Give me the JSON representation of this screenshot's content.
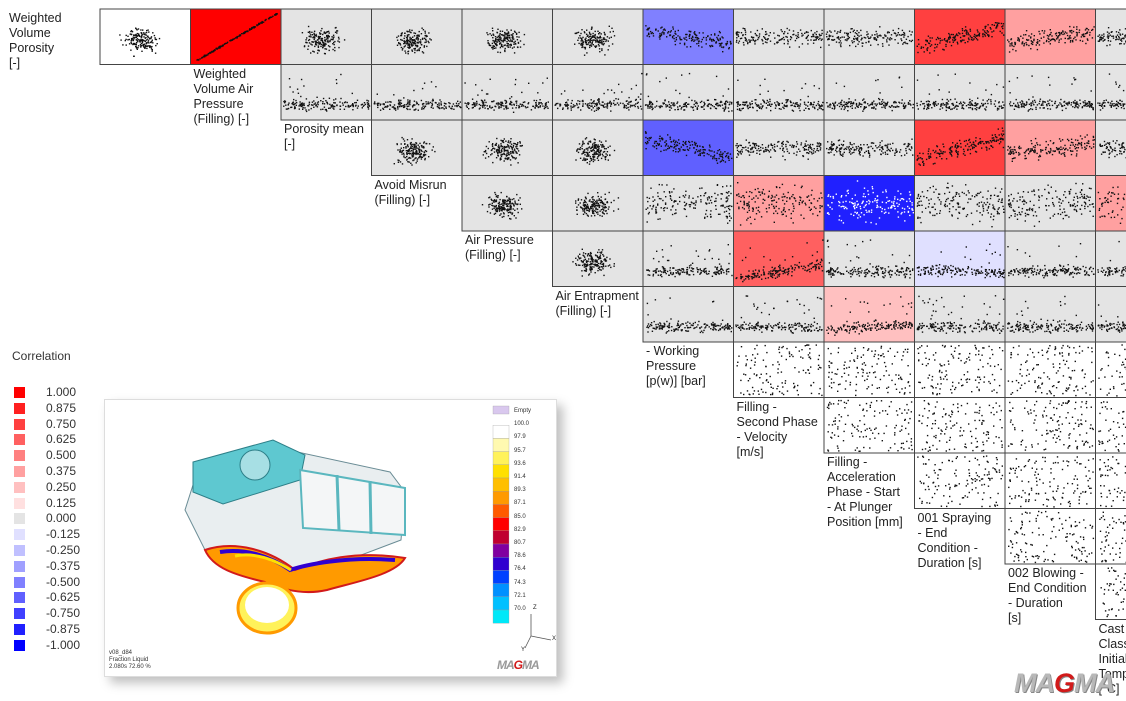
{
  "chart_data": {
    "type": "scatter-matrix",
    "title": "",
    "variables": [
      "Weighted Volume Porosity [-]",
      "Weighted Volume Air Pressure (Filling) [-]",
      "Porosity mean [-]",
      "Avoid Misrun (Filling) [-]",
      "Air Pressure (Filling) [-]",
      "Air Entrapment (Filling) [-]",
      "- Working Pressure [p(w)] [bar]",
      "Filling - Second Phase - Velocity [m/s]",
      "Filling - Acceleration Phase - Start - At Plunger Position [mm]",
      "001 Spraying - End Condition - Duration [s]",
      "002 Blowing - End Condition - Duration [s]",
      "Cast Alloy Class - Initial Temperature [°C]"
    ],
    "label_lines": [
      [
        "Weighted",
        "Volume",
        "Porosity",
        "[-]"
      ],
      [
        "Weighted",
        "Volume Air",
        "Pressure",
        "(Filling) [-]"
      ],
      [
        "Porosity mean",
        "[-]"
      ],
      [
        "Avoid Misrun",
        "(Filling) [-]"
      ],
      [
        "Air Pressure",
        "(Filling) [-]"
      ],
      [
        "Air Entrapment",
        "(Filling) [-]"
      ],
      [
        "- Working",
        "Pressure",
        "[p(w)] [bar]"
      ],
      [
        "Filling -",
        "Second Phase",
        "- Velocity",
        "[m/s]"
      ],
      [
        "Filling -",
        "Acceleration",
        "Phase - Start",
        "- At Plunger",
        "Position [mm]"
      ],
      [
        "001 Spraying",
        "- End",
        "Condition -",
        "Duration [s]"
      ],
      [
        "002 Blowing -",
        "End Condition",
        "- Duration",
        "[s]"
      ],
      [
        "Cast Alloy",
        "Class -",
        "Initial",
        "Temperature",
        "[°C]"
      ]
    ],
    "cells": [
      {
        "row": 0,
        "col": 1,
        "pattern": "linear",
        "corr": 0.95
      },
      {
        "row": 0,
        "col": 2,
        "pattern": "blob",
        "corr": 0
      },
      {
        "row": 0,
        "col": 3,
        "pattern": "blob",
        "corr": 0
      },
      {
        "row": 0,
        "col": 4,
        "pattern": "blob",
        "corr": 0
      },
      {
        "row": 0,
        "col": 5,
        "pattern": "blob",
        "corr": 0
      },
      {
        "row": 0,
        "col": 6,
        "pattern": "band",
        "corr": -0.5
      },
      {
        "row": 0,
        "col": 7,
        "pattern": "band",
        "corr": 0
      },
      {
        "row": 0,
        "col": 8,
        "pattern": "band",
        "corr": 0
      },
      {
        "row": 0,
        "col": 9,
        "pattern": "band",
        "corr": 0.75
      },
      {
        "row": 0,
        "col": 10,
        "pattern": "band",
        "corr": 0.375
      },
      {
        "row": 0,
        "col": 11,
        "pattern": "band",
        "corr": 0
      },
      {
        "row": 1,
        "col": 2,
        "pattern": "lowband",
        "corr": 0
      },
      {
        "row": 1,
        "col": 3,
        "pattern": "lowband",
        "corr": 0
      },
      {
        "row": 1,
        "col": 4,
        "pattern": "lowband",
        "corr": 0
      },
      {
        "row": 1,
        "col": 5,
        "pattern": "lowband",
        "corr": 0
      },
      {
        "row": 1,
        "col": 6,
        "pattern": "lowband",
        "corr": 0
      },
      {
        "row": 1,
        "col": 7,
        "pattern": "lowband",
        "corr": 0
      },
      {
        "row": 1,
        "col": 8,
        "pattern": "lowband",
        "corr": 0
      },
      {
        "row": 1,
        "col": 9,
        "pattern": "lowband",
        "corr": 0
      },
      {
        "row": 1,
        "col": 10,
        "pattern": "lowband",
        "corr": 0
      },
      {
        "row": 1,
        "col": 11,
        "pattern": "lowband",
        "corr": 0
      },
      {
        "row": 2,
        "col": 3,
        "pattern": "blob",
        "corr": 0
      },
      {
        "row": 2,
        "col": 4,
        "pattern": "blob",
        "corr": 0
      },
      {
        "row": 2,
        "col": 5,
        "pattern": "blob",
        "corr": 0
      },
      {
        "row": 2,
        "col": 6,
        "pattern": "band",
        "corr": -0.625
      },
      {
        "row": 2,
        "col": 7,
        "pattern": "band",
        "corr": 0
      },
      {
        "row": 2,
        "col": 8,
        "pattern": "band",
        "corr": 0
      },
      {
        "row": 2,
        "col": 9,
        "pattern": "band",
        "corr": 0.75
      },
      {
        "row": 2,
        "col": 10,
        "pattern": "band",
        "corr": 0.375
      },
      {
        "row": 2,
        "col": 11,
        "pattern": "band",
        "corr": 0
      },
      {
        "row": 3,
        "col": 4,
        "pattern": "blob",
        "corr": 0
      },
      {
        "row": 3,
        "col": 5,
        "pattern": "blob",
        "corr": 0
      },
      {
        "row": 3,
        "col": 6,
        "pattern": "spread",
        "corr": 0
      },
      {
        "row": 3,
        "col": 7,
        "pattern": "spread",
        "corr": 0.375
      },
      {
        "row": 3,
        "col": 8,
        "pattern": "spread",
        "corr": -0.875
      },
      {
        "row": 3,
        "col": 9,
        "pattern": "spread",
        "corr": 0
      },
      {
        "row": 3,
        "col": 10,
        "pattern": "spread",
        "corr": 0
      },
      {
        "row": 3,
        "col": 11,
        "pattern": "spread",
        "corr": 0.375
      },
      {
        "row": 4,
        "col": 5,
        "pattern": "blob",
        "corr": 0
      },
      {
        "row": 4,
        "col": 6,
        "pattern": "lowband",
        "corr": 0
      },
      {
        "row": 4,
        "col": 7,
        "pattern": "lowband",
        "corr": 0.625
      },
      {
        "row": 4,
        "col": 8,
        "pattern": "lowband",
        "corr": 0
      },
      {
        "row": 4,
        "col": 9,
        "pattern": "lowband",
        "corr": -0.125
      },
      {
        "row": 4,
        "col": 10,
        "pattern": "lowband",
        "corr": 0
      },
      {
        "row": 4,
        "col": 11,
        "pattern": "lowband",
        "corr": 0
      },
      {
        "row": 5,
        "col": 6,
        "pattern": "lowband",
        "corr": 0
      },
      {
        "row": 5,
        "col": 7,
        "pattern": "lowband",
        "corr": 0
      },
      {
        "row": 5,
        "col": 8,
        "pattern": "lowband",
        "corr": 0.25
      },
      {
        "row": 5,
        "col": 9,
        "pattern": "lowband",
        "corr": 0
      },
      {
        "row": 5,
        "col": 10,
        "pattern": "lowband",
        "corr": 0
      },
      {
        "row": 5,
        "col": 11,
        "pattern": "lowband",
        "corr": 0
      },
      {
        "row": 6,
        "col": 7,
        "pattern": "uniform",
        "corr": null
      },
      {
        "row": 6,
        "col": 8,
        "pattern": "uniform",
        "corr": null
      },
      {
        "row": 6,
        "col": 9,
        "pattern": "uniform",
        "corr": null
      },
      {
        "row": 6,
        "col": 10,
        "pattern": "uniform",
        "corr": null
      },
      {
        "row": 6,
        "col": 11,
        "pattern": "uniform",
        "corr": null
      },
      {
        "row": 7,
        "col": 8,
        "pattern": "uniform",
        "corr": null
      },
      {
        "row": 7,
        "col": 9,
        "pattern": "uniform",
        "corr": null
      },
      {
        "row": 7,
        "col": 10,
        "pattern": "uniform",
        "corr": null
      },
      {
        "row": 7,
        "col": 11,
        "pattern": "uniform",
        "corr": null
      },
      {
        "row": 8,
        "col": 9,
        "pattern": "uniform",
        "corr": null
      },
      {
        "row": 8,
        "col": 10,
        "pattern": "uniform",
        "corr": null
      },
      {
        "row": 8,
        "col": 11,
        "pattern": "uniform",
        "corr": null
      },
      {
        "row": 9,
        "col": 10,
        "pattern": "uniform",
        "corr": null
      },
      {
        "row": 9,
        "col": 11,
        "pattern": "uniform",
        "corr": null
      },
      {
        "row": 10,
        "col": 11,
        "pattern": "uniform",
        "corr": null
      }
    ],
    "legend": {
      "title": "Correlation",
      "entries": [
        {
          "label": "1.000",
          "color": "#ff0000"
        },
        {
          "label": "0.875",
          "color": "#ff2020"
        },
        {
          "label": "0.750",
          "color": "#ff4040"
        },
        {
          "label": "0.625",
          "color": "#ff6060"
        },
        {
          "label": "0.500",
          "color": "#ff8080"
        },
        {
          "label": "0.375",
          "color": "#ffa0a0"
        },
        {
          "label": "0.250",
          "color": "#ffc0c0"
        },
        {
          "label": "0.125",
          "color": "#ffe0e0"
        },
        {
          "label": "0.000",
          "color": "#e4e4e4"
        },
        {
          "label": "-0.125",
          "color": "#e0e0ff"
        },
        {
          "label": "-0.250",
          "color": "#c0c0ff"
        },
        {
          "label": "-0.375",
          "color": "#a0a0ff"
        },
        {
          "label": "-0.500",
          "color": "#8080ff"
        },
        {
          "label": "-0.625",
          "color": "#6060ff"
        },
        {
          "label": "-0.750",
          "color": "#4040ff"
        },
        {
          "label": "-0.875",
          "color": "#2020ff"
        },
        {
          "label": "-1.000",
          "color": "#0000ff"
        }
      ]
    }
  },
  "simulation": {
    "colorbar": {
      "labels": [
        "Empty",
        "100.0",
        "97.9",
        "95.7",
        "93.6",
        "91.4",
        "89.3",
        "87.1",
        "85.0",
        "82.9",
        "80.7",
        "78.6",
        "76.4",
        "74.3",
        "72.1",
        "70.0"
      ],
      "colors": [
        "#d9c8ee",
        "#ffffff",
        "#fff9b0",
        "#fff25a",
        "#ffe000",
        "#ffbf00",
        "#ff9a00",
        "#ff5a00",
        "#ff0000",
        "#c00030",
        "#8000a0",
        "#3000d0",
        "#0040ff",
        "#0090ff",
        "#00c0ff",
        "#00e8f8"
      ]
    },
    "footer_lines": [
      "v08_d84",
      "Fraction Liquid",
      "2.080s 72.60 %"
    ],
    "axis_labels": {
      "z": "Z",
      "x": "X",
      "y": "Y"
    },
    "logo_parts": [
      "MA",
      "G",
      "MA"
    ]
  },
  "logo_parts": [
    "MA",
    "G",
    "MA"
  ]
}
